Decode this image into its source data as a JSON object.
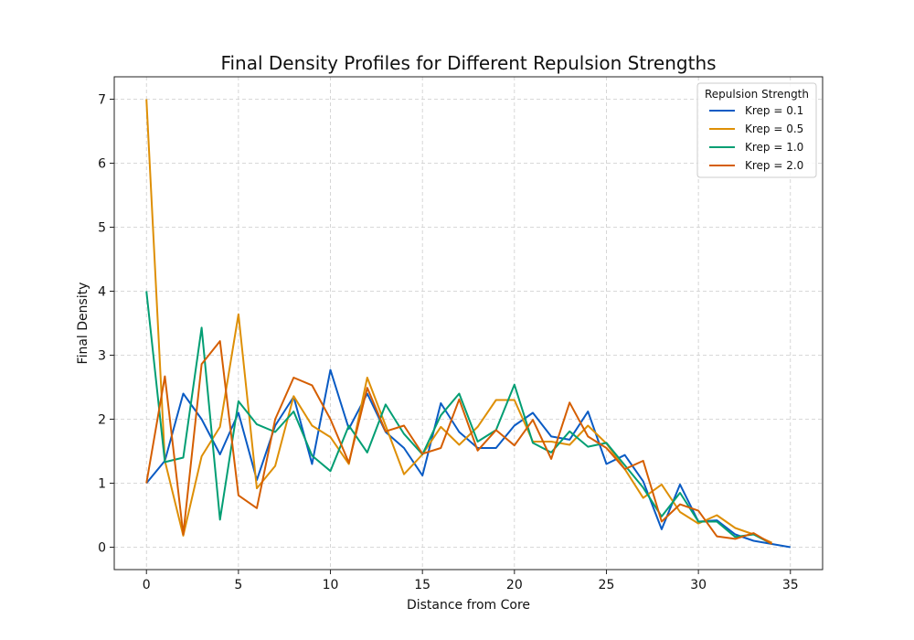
{
  "chart_data": {
    "type": "line",
    "title": "Final Density Profiles for Different Repulsion Strengths",
    "xlabel": "Distance from Core",
    "ylabel": "Final Density",
    "xlim": [
      -1.75,
      36.75
    ],
    "ylim": [
      -0.35,
      7.35
    ],
    "xticks": [
      0,
      5,
      10,
      15,
      20,
      25,
      30,
      35
    ],
    "yticks": [
      0,
      1,
      2,
      3,
      4,
      5,
      6,
      7
    ],
    "grid": true,
    "legend": {
      "title": "Repulsion Strength",
      "placement": "top-right"
    },
    "series": [
      {
        "name": "Krep = 0.1",
        "color": "#0a5bc4",
        "x": [
          0,
          1,
          2,
          3,
          4,
          5,
          6,
          7,
          8,
          9,
          10,
          11,
          12,
          13,
          14,
          15,
          16,
          17,
          18,
          19,
          20,
          21,
          22,
          23,
          24,
          25,
          26,
          27,
          28,
          29,
          30,
          31,
          32,
          33,
          34,
          35
        ],
        "values": [
          1.0,
          1.35,
          2.4,
          2.0,
          1.45,
          2.1,
          1.05,
          1.9,
          2.35,
          1.3,
          2.77,
          1.85,
          2.4,
          1.8,
          1.55,
          1.12,
          2.25,
          1.8,
          1.55,
          1.55,
          1.9,
          2.1,
          1.73,
          1.68,
          2.12,
          1.3,
          1.44,
          1.03,
          0.28,
          0.98,
          0.4,
          0.42,
          0.2,
          0.1,
          0.05,
          0.0
        ]
      },
      {
        "name": "Krep = 0.5",
        "color": "#de8f05",
        "x": [
          0,
          1,
          2,
          3,
          4,
          5,
          6,
          7,
          8,
          9,
          10,
          11,
          12,
          13,
          14,
          15,
          16,
          17,
          18,
          19,
          20,
          21,
          22,
          23,
          24,
          25,
          26,
          27,
          28,
          29,
          30,
          31,
          32,
          33,
          34
        ],
        "values": [
          7.0,
          1.35,
          0.18,
          1.42,
          1.88,
          3.64,
          0.92,
          1.27,
          2.36,
          1.9,
          1.72,
          1.3,
          2.65,
          1.9,
          1.14,
          1.45,
          1.88,
          1.6,
          1.88,
          2.3,
          2.3,
          1.65,
          1.65,
          1.6,
          1.9,
          1.62,
          1.22,
          0.77,
          0.98,
          0.55,
          0.37,
          0.5,
          0.3,
          0.2,
          0.07
        ]
      },
      {
        "name": "Krep = 1.0",
        "color": "#029e73",
        "x": [
          0,
          1,
          2,
          3,
          4,
          5,
          6,
          7,
          8,
          9,
          10,
          11,
          12,
          13,
          14,
          15,
          16,
          17,
          18,
          19,
          20,
          21,
          22,
          23,
          24,
          25,
          26,
          27,
          28,
          29,
          30,
          31,
          32,
          33,
          34
        ],
        "values": [
          4.0,
          1.33,
          1.4,
          3.43,
          0.43,
          2.28,
          1.92,
          1.8,
          2.12,
          1.43,
          1.19,
          1.9,
          1.48,
          2.23,
          1.77,
          1.45,
          2.06,
          2.4,
          1.65,
          1.83,
          2.54,
          1.63,
          1.48,
          1.81,
          1.57,
          1.63,
          1.28,
          0.93,
          0.48,
          0.85,
          0.4,
          0.4,
          0.16,
          0.2,
          0.05
        ]
      },
      {
        "name": "Krep = 2.0",
        "color": "#d55e00",
        "x": [
          0,
          1,
          2,
          3,
          4,
          5,
          6,
          7,
          8,
          9,
          10,
          11,
          12,
          13,
          14,
          15,
          16,
          17,
          18,
          19,
          20,
          21,
          22,
          23,
          24,
          25,
          26,
          27,
          28,
          29,
          30,
          31,
          32,
          33,
          34
        ],
        "values": [
          1.0,
          2.67,
          0.2,
          2.86,
          3.22,
          0.81,
          0.61,
          2.0,
          2.65,
          2.53,
          2.0,
          1.32,
          2.49,
          1.81,
          1.9,
          1.46,
          1.55,
          2.31,
          1.51,
          1.83,
          1.59,
          1.99,
          1.38,
          2.26,
          1.73,
          1.55,
          1.22,
          1.35,
          0.4,
          0.67,
          0.57,
          0.17,
          0.13,
          0.22,
          0.05
        ]
      }
    ]
  }
}
